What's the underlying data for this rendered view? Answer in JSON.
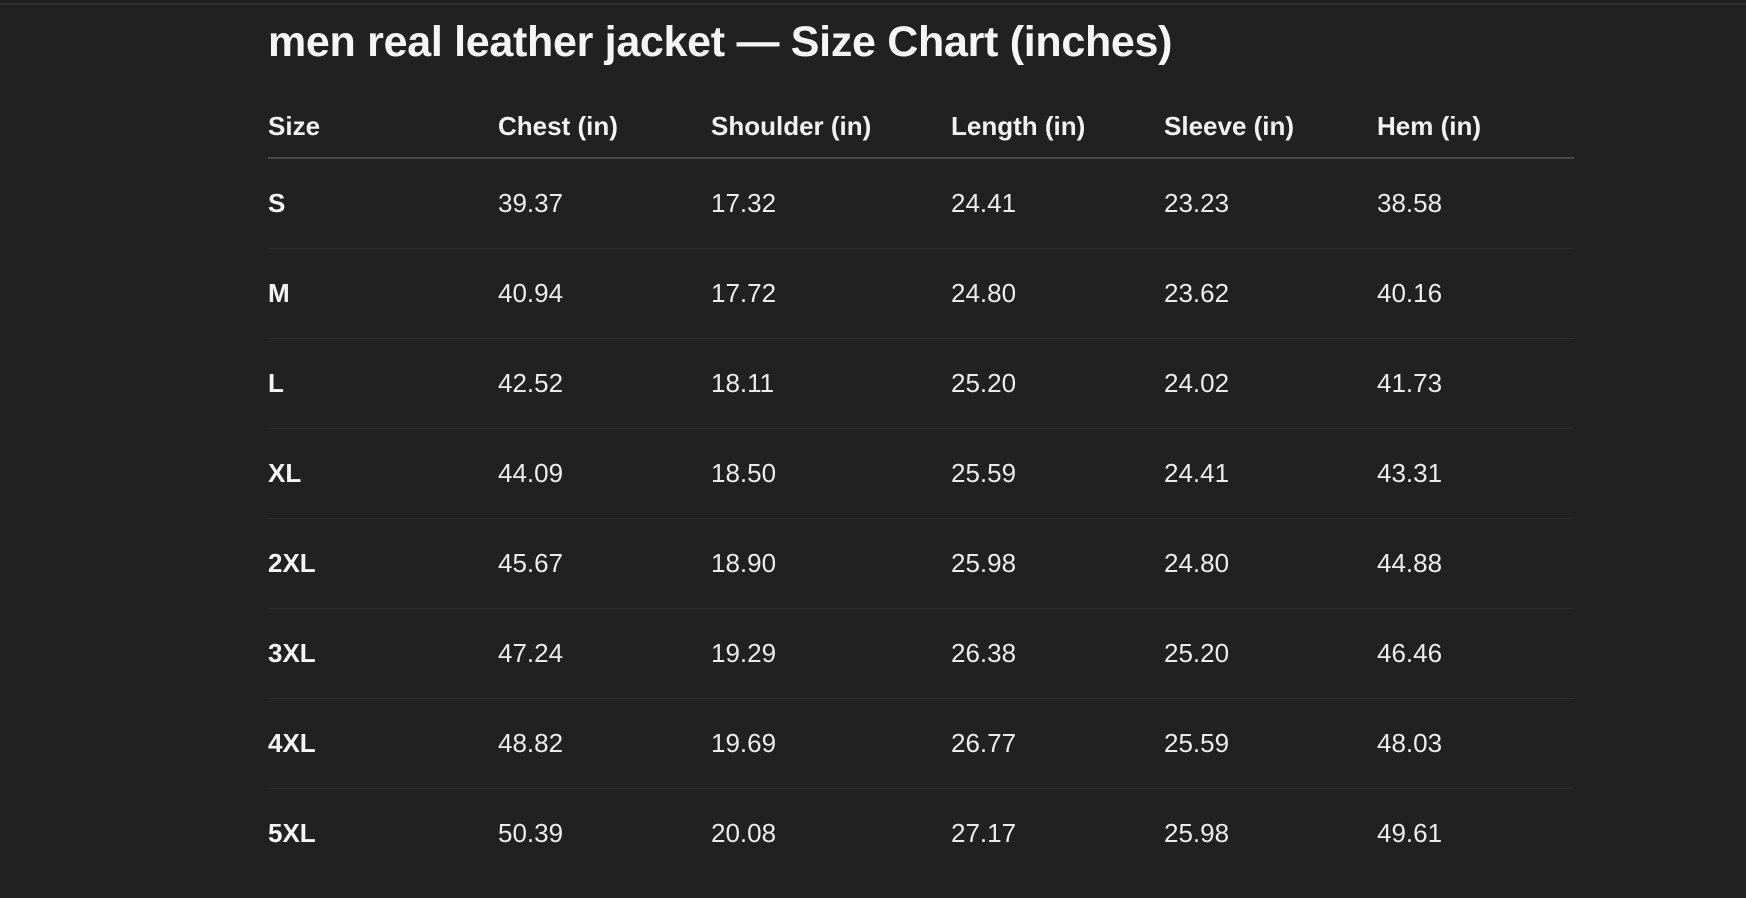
{
  "title": "men real leather jacket — Size Chart (inches)",
  "columns": [
    "Size",
    "Chest (in)",
    "Shoulder (in)",
    "Length (in)",
    "Sleeve (in)",
    "Hem (in)"
  ],
  "rows": [
    [
      "S",
      "39.37",
      "17.32",
      "24.41",
      "23.23",
      "38.58"
    ],
    [
      "M",
      "40.94",
      "17.72",
      "24.80",
      "23.62",
      "40.16"
    ],
    [
      "L",
      "42.52",
      "18.11",
      "25.20",
      "24.02",
      "41.73"
    ],
    [
      "XL",
      "44.09",
      "18.50",
      "25.59",
      "24.41",
      "43.31"
    ],
    [
      "2XL",
      "45.67",
      "18.90",
      "25.98",
      "24.80",
      "44.88"
    ],
    [
      "3XL",
      "47.24",
      "19.29",
      "26.38",
      "25.20",
      "46.46"
    ],
    [
      "4XL",
      "48.82",
      "19.69",
      "26.77",
      "25.59",
      "48.03"
    ],
    [
      "5XL",
      "50.39",
      "20.08",
      "27.17",
      "25.98",
      "49.61"
    ]
  ]
}
